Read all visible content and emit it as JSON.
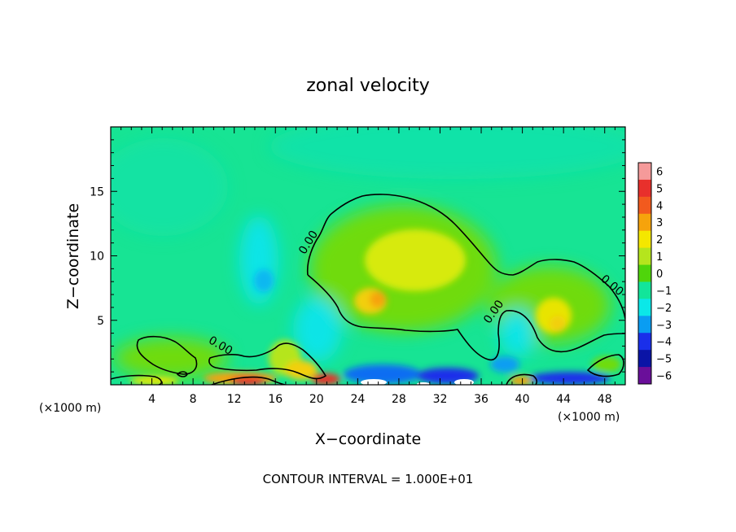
{
  "chart_data": {
    "type": "heatmap",
    "title": "zonal velocity",
    "xlabel": "X−coordinate",
    "ylabel": "Z−coordinate",
    "x_unit_label_left": "(×1000 m)",
    "x_unit_label_right": "(×1000 m)",
    "footer": "CONTOUR INTERVAL = 1.000E+01",
    "xlim": [
      0,
      50
    ],
    "ylim": [
      0,
      20
    ],
    "x_ticks": [
      4,
      8,
      12,
      16,
      20,
      24,
      28,
      32,
      36,
      40,
      44,
      48
    ],
    "x_tick_labels": [
      "4",
      "8",
      "12",
      "16",
      "20",
      "24",
      "28",
      "32",
      "36",
      "40",
      "44",
      "48"
    ],
    "y_ticks": [
      5,
      10,
      15
    ],
    "y_tick_labels": [
      "5",
      "10",
      "15"
    ],
    "colorbar": {
      "range": [
        -6,
        6
      ],
      "labels": [
        "6",
        "5",
        "4",
        "3",
        "2",
        "1",
        "0",
        "−1",
        "−2",
        "−3",
        "−4",
        "−5",
        "−6"
      ],
      "colors": [
        "#f59a9a",
        "#e8302c",
        "#f25a1e",
        "#f6a30c",
        "#f4e700",
        "#b5e51d",
        "#4fd50b",
        "#12e59a",
        "#0be8e8",
        "#0a9df2",
        "#1a2fea",
        "#0a14a6",
        "#6a0f9a"
      ]
    },
    "contour_labels": [
      {
        "text": "0.00",
        "x": 19.5,
        "z": 10.9,
        "angle": -58
      },
      {
        "text": "0.00",
        "x": 10.5,
        "z": 2.8,
        "angle": 30
      },
      {
        "text": "0.00",
        "x": 37.5,
        "z": 5.5,
        "angle": -55
      },
      {
        "text": "0.00",
        "x": 48.5,
        "z": 7.5,
        "angle": 40
      }
    ],
    "features": [
      {
        "x": 25,
        "z": 10,
        "value": 1.5
      },
      {
        "x": 26,
        "z": 6.5,
        "value": 3
      },
      {
        "x": 30,
        "z": 9.5,
        "value": 2
      },
      {
        "x": 43.5,
        "z": 4.5,
        "value": 2
      },
      {
        "x": 14.5,
        "z": 0.5,
        "value": 5
      },
      {
        "x": 21,
        "z": 0.5,
        "value": 4
      },
      {
        "x": 19,
        "z": 1.5,
        "value": 2
      },
      {
        "x": 7,
        "z": 2.5,
        "value": 1
      },
      {
        "x": 15,
        "z": 10,
        "value": -2
      },
      {
        "x": 20,
        "z": 5,
        "value": -2
      },
      {
        "x": 27,
        "z": 0.5,
        "value": -5
      },
      {
        "x": 33,
        "z": 0.5,
        "value": -5
      },
      {
        "x": 45,
        "z": 0.5,
        "value": -4
      },
      {
        "x": 38.5,
        "z": 3,
        "value": -2
      }
    ]
  }
}
